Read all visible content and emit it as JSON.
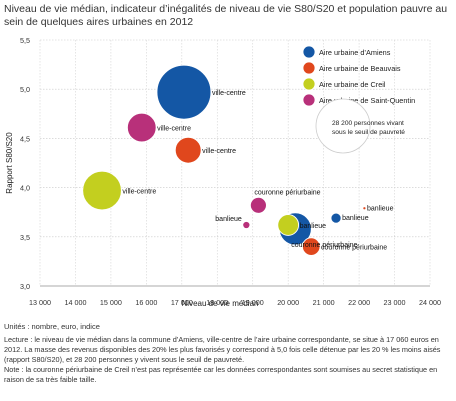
{
  "title": "Niveau de vie médian, indicateur d’inégalités de niveau de vie S80/S20 et population pauvre au sein de quelques aires urbaines en 2012",
  "units": "Unités : nombre, euro, indice",
  "notes": [
    "Lecture : le niveau de vie médian dans la commune d’Amiens, ville-centre de l’aire urbaine correspondante, se situe à 17 060 euros en 2012. La masse des revenus disponibles des 20% les plus favorisés y correspond à 5,0 fois celle détenue par les 20 % les moins aisés (rapport S80/S20), et 28 200 personnes y vivent sous le seuil de pauvreté.",
    "Note : la couronne périurbaine de Creil n’est pas représentée car les données correspondantes sont soumises au secret statistique en raison de sa très faible taille."
  ],
  "chart_data": {
    "type": "scatter",
    "xlabel": "Niveau de vie médian",
    "ylabel": "Rapport S80/S20",
    "xlim": [
      13000,
      24000
    ],
    "ylim": [
      3.0,
      5.5
    ],
    "x_ticks": [
      "13 000",
      "14 000",
      "15 000",
      "16 000",
      "17 000",
      "18 000",
      "19 000",
      "20 000",
      "21 000",
      "22 000",
      "23 000",
      "24 000"
    ],
    "y_ticks": [
      "3,0",
      "3,5",
      "4,0",
      "4,5",
      "5,0",
      "5,5"
    ],
    "grid": true,
    "legend_position": "top-right",
    "size_legend": {
      "value": 28200,
      "label": "28 200 personnes vivant sous le seuil de pauvreté"
    },
    "series": [
      {
        "name": "Aire urbaine d’Amiens",
        "color": "#1457a5",
        "points": [
          {
            "label": "ville-centre",
            "x": 17060,
            "y": 4.97,
            "pop": 28200
          },
          {
            "label": "couronne périurbaine",
            "x": 20200,
            "y": 3.58,
            "pop": 10000
          },
          {
            "label": "banlieue",
            "x": 21350,
            "y": 3.69,
            "pop": 1000
          }
        ]
      },
      {
        "name": "Aire urbaine de Beauvais",
        "color": "#e0471d",
        "points": [
          {
            "label": "ville-centre",
            "x": 17180,
            "y": 4.38,
            "pop": 6500
          },
          {
            "label": "couronne périurbaine",
            "x": 20650,
            "y": 3.4,
            "pop": 3000
          },
          {
            "label": "banlieue",
            "x": 22150,
            "y": 3.79,
            "pop": 50
          }
        ]
      },
      {
        "name": "Aire urbaine de Creil",
        "color": "#c3cf1f",
        "points": [
          {
            "label": "ville-centre",
            "x": 14750,
            "y": 3.97,
            "pop": 14500
          },
          {
            "label": "banlieue",
            "x": 20000,
            "y": 3.62,
            "pop": 4200
          }
        ]
      },
      {
        "name": "Aire urbaine de Saint-Quentin",
        "color": "#b8307a",
        "points": [
          {
            "label": "ville-centre",
            "x": 15870,
            "y": 4.61,
            "pop": 8000
          },
          {
            "label": "couronne périurbaine",
            "x": 19160,
            "y": 3.82,
            "pop": 2500
          },
          {
            "label": "banlieue",
            "x": 18820,
            "y": 3.62,
            "pop": 500
          }
        ]
      }
    ]
  }
}
